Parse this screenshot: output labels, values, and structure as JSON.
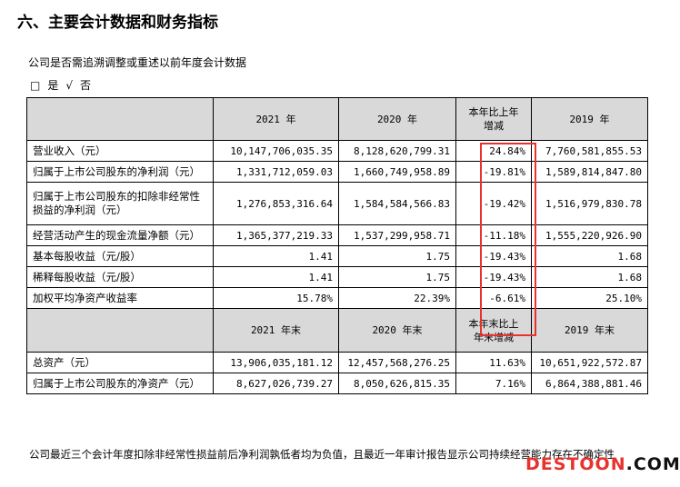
{
  "heading": "六、主要会计数据和财务指标",
  "intro": "公司是否需追溯调整或重述以前年度会计数据",
  "choice": {
    "box": "□",
    "yes": "是",
    "check": "√",
    "no": "否"
  },
  "table1": {
    "headers": [
      "",
      "2021 年",
      "2020 年",
      "本年比上年\n增减",
      "2019 年"
    ],
    "rows": [
      [
        "营业收入（元）",
        "10,147,706,035.35",
        "8,128,620,799.31",
        "24.84%",
        "7,760,581,855.53"
      ],
      [
        "归属于上市公司股东的净利润（元）",
        "1,331,712,059.03",
        "1,660,749,958.89",
        "-19.81%",
        "1,589,814,847.80"
      ],
      [
        "归属于上市公司股东的扣除非经常性损益的净利润（元）",
        "1,276,853,316.64",
        "1,584,584,566.83",
        "-19.42%",
        "1,516,979,830.78"
      ],
      [
        "经营活动产生的现金流量净额（元）",
        "1,365,377,219.33",
        "1,537,299,958.71",
        "-11.18%",
        "1,555,220,926.90"
      ],
      [
        "基本每股收益（元/股）",
        "1.41",
        "1.75",
        "-19.43%",
        "1.68"
      ],
      [
        "稀释每股收益（元/股）",
        "1.41",
        "1.75",
        "-19.43%",
        "1.68"
      ],
      [
        "加权平均净资产收益率",
        "15.78%",
        "22.39%",
        "-6.61%",
        "25.10%"
      ]
    ]
  },
  "table2": {
    "headers": [
      "",
      "2021 年末",
      "2020 年末",
      "本年末比上\n年末增减",
      "2019 年末"
    ],
    "rows": [
      [
        "总资产（元）",
        "13,906,035,181.12",
        "12,457,568,276.25",
        "11.63%",
        "10,651,922,572.87"
      ],
      [
        "归属于上市公司股东的净资产（元）",
        "8,627,026,739.27",
        "8,050,626,815.35",
        "7.16%",
        "6,864,388,881.46"
      ]
    ]
  },
  "note": "公司最近三个会计年度扣除非经常性损益前后净利润孰低者均为负值，且最近一年审计报告显示公司持续经营能力存在不确定性",
  "watermark": {
    "part1": "DESTOON",
    "part2": ".COM"
  },
  "colors": {
    "highlight": "#e8322e",
    "header_bg": "#d9d9d9"
  }
}
